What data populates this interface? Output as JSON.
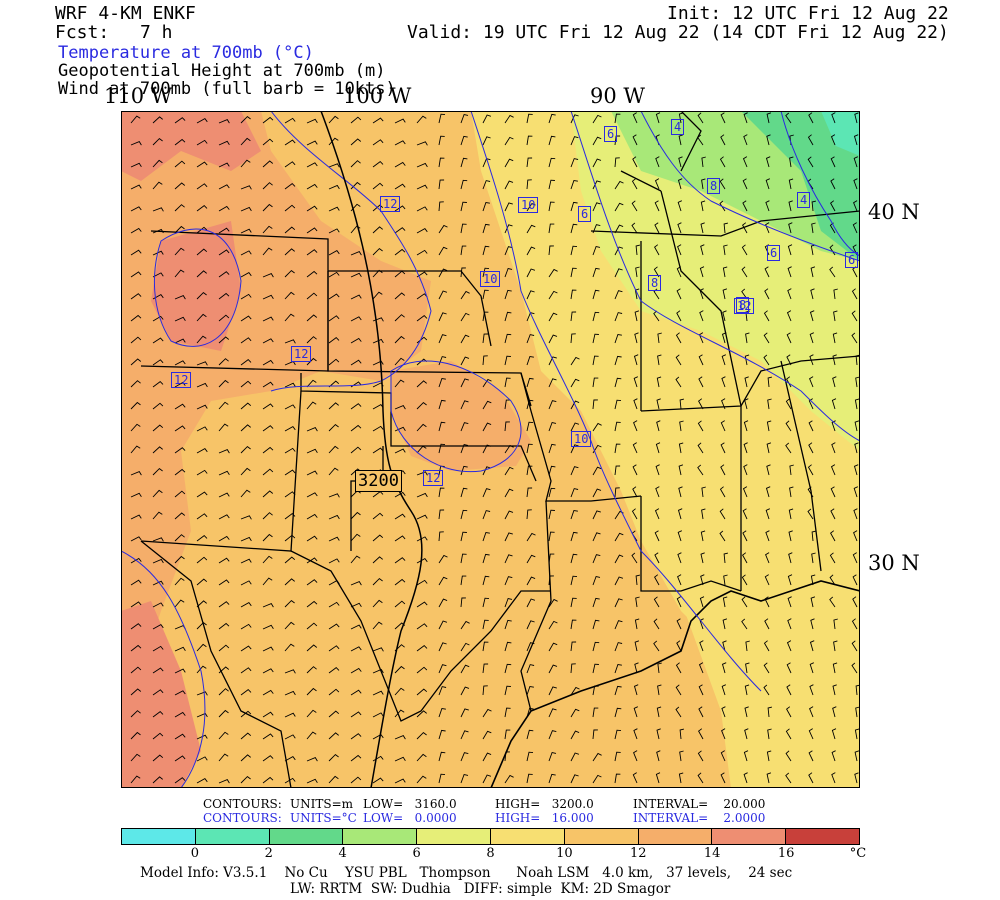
{
  "header": {
    "model": "WRF 4-KM ENKF",
    "fcst_label": "Fcst:",
    "fcst_value": "7 h",
    "init": "Init: 12 UTC Fri 12 Aug 22",
    "valid": "Valid: 19 UTC Fri 12 Aug 22 (14 CDT Fri 12 Aug 22)"
  },
  "fields": {
    "temperature": "Temperature at 700mb (°C)",
    "height": "Geopotential Height at 700mb (m)",
    "wind": "Wind at 700mb (full barb = 10kts)"
  },
  "axes": {
    "lon_labels": [
      "110 W",
      "100 W",
      "90 W"
    ],
    "lat_labels": [
      "40 N",
      "30 N"
    ]
  },
  "map": {
    "temp_contour_labels": [
      "12",
      "12",
      "10",
      "10",
      "6",
      "8",
      "8",
      "6",
      "8",
      "6",
      "4",
      "6",
      "4",
      "12",
      "12",
      "10",
      "12"
    ],
    "height_contour_labels": [
      "3200"
    ],
    "temp_color": "#2a2ae0",
    "height_color": "#000000"
  },
  "contour_info": {
    "height": {
      "label": "CONTOURS:",
      "units": "UNITS=m",
      "low": "LOW=   3160.0",
      "high": "HIGH=   3200.0",
      "interval": "INTERVAL=    20.000"
    },
    "temperature": {
      "label": "CONTOURS:",
      "units": "UNITS=°C",
      "low": "LOW=   0.0000",
      "high": "HIGH=   16.000",
      "interval": "INTERVAL=    2.0000"
    }
  },
  "colorbar": {
    "colors": [
      "#5de8e8",
      "#5ce6b4",
      "#62d98a",
      "#a8e878",
      "#e6ee78",
      "#f7df72",
      "#f7c468",
      "#f5ae6a",
      "#ee8e72",
      "#c8403a"
    ],
    "tick_labels": [
      "0",
      "2",
      "4",
      "6",
      "8",
      "10",
      "12",
      "14",
      "16"
    ],
    "units": "°C"
  },
  "model_info": {
    "line1": "Model Info: V3.5.1    No Cu    YSU PBL   Thompson      Noah LSM   4.0 km,   37 levels,    24 sec",
    "line2": "LW: RRTM  SW: Dudhia   DIFF: simple  KM: 2D Smagor"
  }
}
